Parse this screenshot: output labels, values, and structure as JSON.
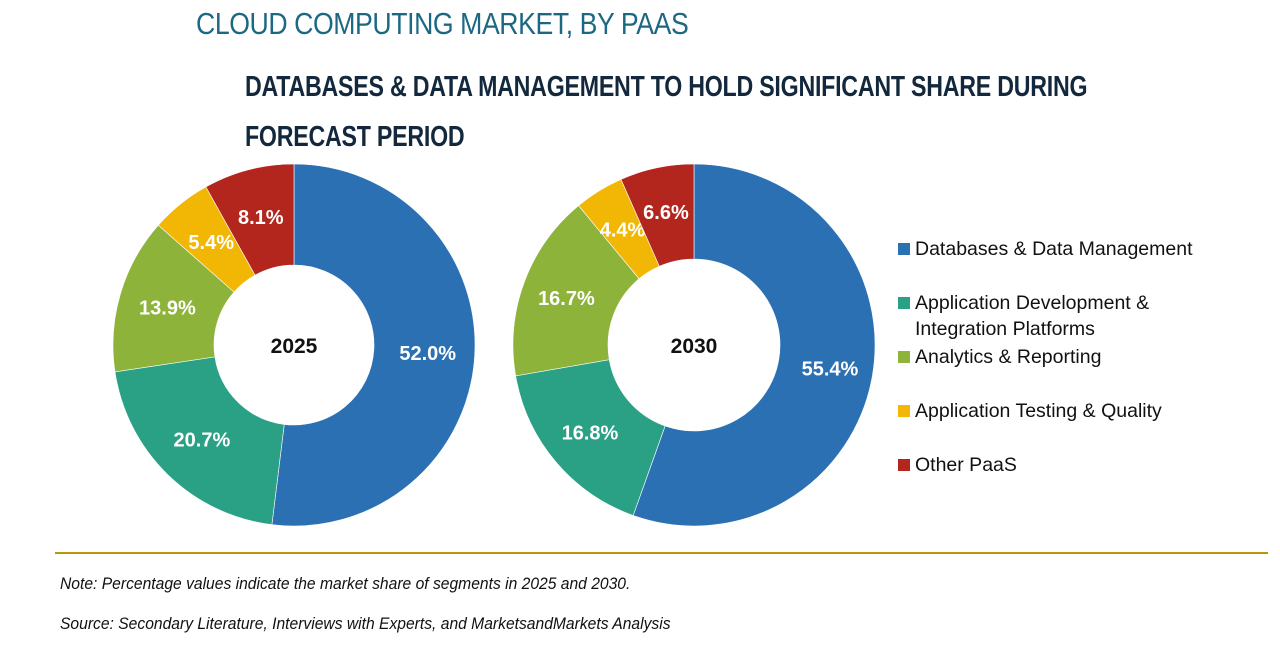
{
  "title": "CLOUD COMPUTING MARKET, BY PAAS",
  "subtitle_lines": [
    "DATABASES & DATA MANAGEMENT TO HOLD SIGNIFICANT SHARE DURING",
    "FORECAST PERIOD"
  ],
  "chart_data": [
    {
      "type": "pie",
      "variant": "donut",
      "center_label": "2025",
      "categories": [
        "Databases & Data Management",
        "Application Development & Integration Platforms",
        "Analytics & Reporting",
        "Application Testing & Quality",
        "Other PaaS"
      ],
      "values": [
        52.0,
        20.7,
        13.9,
        5.4,
        8.1
      ],
      "labels": [
        "52.0%",
        "20.7%",
        "13.9%",
        "5.4%",
        "8.1%"
      ]
    },
    {
      "type": "pie",
      "variant": "donut",
      "center_label": "2030",
      "categories": [
        "Databases & Data Management",
        "Application Development & Integration Platforms",
        "Analytics & Reporting",
        "Application Testing & Quality",
        "Other PaaS"
      ],
      "values": [
        55.4,
        16.8,
        16.7,
        4.4,
        6.6
      ],
      "labels": [
        "55.4%",
        "16.8%",
        "16.7%",
        "4.4%",
        "6.6%"
      ]
    }
  ],
  "legend": {
    "placement": "right",
    "items": [
      {
        "label_lines": [
          "Databases & Data Management"
        ],
        "color": "#2b70b3"
      },
      {
        "label_lines": [
          "Application Development &",
          "Integration Platforms"
        ],
        "color": "#2aa185"
      },
      {
        "label_lines": [
          "Analytics & Reporting"
        ],
        "color": "#8db33a"
      },
      {
        "label_lines": [
          "Application Testing & Quality"
        ],
        "color": "#f2b705"
      },
      {
        "label_lines": [
          "Other PaaS"
        ],
        "color": "#b3261e"
      }
    ]
  },
  "colors": {
    "title": "#1c6883",
    "divider": "#b8960f"
  },
  "footer": {
    "note": "Note: Percentage values indicate the market share of segments in 2025 and 2030.",
    "source": "Source: Secondary Literature, Interviews with Experts, and MarketsandMarkets Analysis"
  }
}
